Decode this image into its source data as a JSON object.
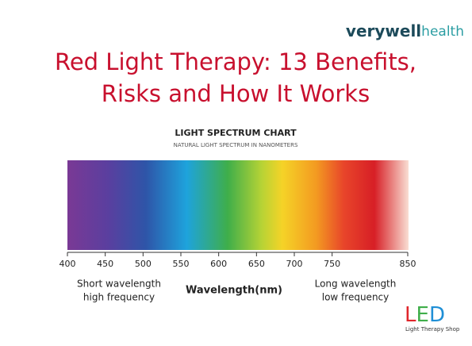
{
  "brand": {
    "primary": "verywell",
    "secondary": "health"
  },
  "title": [
    "Red Light Therapy: 13 Benefits,",
    "Risks and How It Works"
  ],
  "spectrum": {
    "title": "LIGHT SPECTRUM CHART",
    "subtitle": "NATURAL LIGHT SPECTRUM IN NANOMETERS",
    "xlim": [
      400,
      850
    ],
    "xticks": [
      400,
      450,
      500,
      550,
      600,
      650,
      700,
      750,
      850
    ],
    "xlabel": "Wavelength(nm)",
    "left_note": [
      "Short wavelength",
      "high frequency"
    ],
    "right_note": [
      "Long wavelength",
      "low frequency"
    ]
  },
  "logo": {
    "letters": [
      "L",
      "E",
      "D"
    ],
    "tagline": "Light Therapy Shop"
  }
}
